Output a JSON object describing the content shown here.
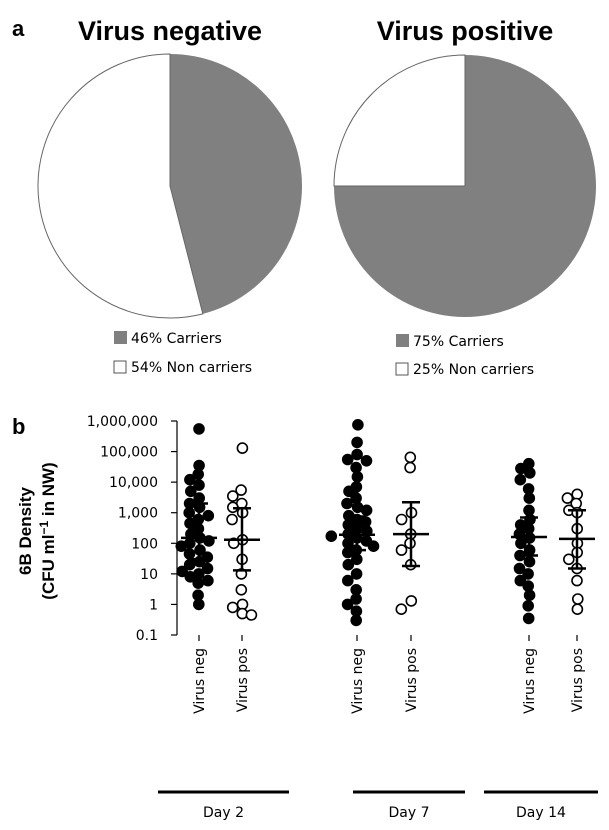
{
  "panel_a": {
    "letter": "a"
  },
  "panel_b": {
    "letter": "b"
  },
  "chart_data": [
    {
      "type": "pie",
      "title": "Virus negative",
      "slices": [
        {
          "label": "46% Carriers",
          "value": 46,
          "color": "#808080"
        },
        {
          "label": "54% Non carriers",
          "value": 54,
          "color": "#ffffff"
        }
      ]
    },
    {
      "type": "pie",
      "title": "Virus positive",
      "slices": [
        {
          "label": "75% Carriers",
          "value": 75,
          "color": "#808080"
        },
        {
          "label": "25% Non carriers",
          "value": 25,
          "color": "#ffffff"
        }
      ]
    },
    {
      "type": "scatter",
      "ylabel_line1": "6B Density",
      "ylabel_line2_prefix": "(CFU ml",
      "ylabel_line2_sup": "−1",
      "ylabel_line2_suffix": " in NW)",
      "yscale": "log",
      "ylim": [
        0.1,
        1000000
      ],
      "yticks": [
        {
          "value": 0.1,
          "label": "0.1"
        },
        {
          "value": 1,
          "label": "1"
        },
        {
          "value": 10,
          "label": "10"
        },
        {
          "value": 100,
          "label": "100"
        },
        {
          "value": 1000,
          "label": "1,000"
        },
        {
          "value": 10000,
          "label": "10,000"
        },
        {
          "value": 100000,
          "label": "100,000"
        },
        {
          "value": 1000000,
          "label": "1,000,000"
        }
      ],
      "groups": [
        {
          "label": "Day 2",
          "categories": [
            "Virus neg",
            "Virus pos"
          ]
        },
        {
          "label": "Day 7",
          "categories": [
            "Virus neg",
            "Virus pos"
          ]
        },
        {
          "label": "Day 14",
          "categories": [
            "Virus neg",
            "Virus pos"
          ]
        }
      ],
      "series": [
        {
          "group": "Day 2",
          "category": "Virus neg",
          "filled": true,
          "median": 150,
          "iqr": [
            30,
            2000
          ],
          "values": [
            550000,
            35000,
            18000,
            12000,
            8000,
            5000,
            3000,
            2000,
            1500,
            1000,
            800,
            600,
            450,
            300,
            200,
            150,
            120,
            100,
            80,
            60,
            45,
            35,
            25,
            20,
            15,
            12,
            10,
            8,
            6,
            5,
            2,
            1
          ]
        },
        {
          "group": "Day 2",
          "category": "Virus pos",
          "filled": false,
          "median": 130,
          "iqr": [
            13,
            1400
          ],
          "values": [
            130000,
            5500,
            3500,
            2000,
            1500,
            1000,
            600,
            130,
            100,
            30,
            10,
            3,
            1,
            0.8,
            0.5,
            0.45
          ]
        },
        {
          "group": "Day 7",
          "category": "Virus neg",
          "filled": true,
          "median": 190,
          "iqr": [
            60,
            750
          ],
          "values": [
            750000,
            200000,
            80000,
            55000,
            50000,
            30000,
            15000,
            7000,
            5000,
            3000,
            2000,
            1500,
            1200,
            800,
            600,
            500,
            400,
            300,
            250,
            200,
            170,
            150,
            120,
            100,
            80,
            60,
            50,
            30,
            20,
            10,
            6,
            3,
            1.5,
            1,
            0.6,
            0.3
          ]
        },
        {
          "group": "Day 7",
          "category": "Virus pos",
          "filled": false,
          "median": 200,
          "iqr": [
            18,
            2200
          ],
          "values": [
            65000,
            30000,
            1000,
            600,
            200,
            100,
            60,
            20,
            1.3,
            0.7
          ]
        },
        {
          "group": "Day 14",
          "category": "Virus neg",
          "filled": true,
          "median": 160,
          "iqr": [
            40,
            700
          ],
          "values": [
            40000,
            28000,
            20000,
            12000,
            6000,
            3000,
            1200,
            600,
            400,
            300,
            200,
            150,
            100,
            60,
            40,
            25,
            15,
            10,
            6,
            4,
            2,
            0.9,
            0.35
          ]
        },
        {
          "group": "Day 14",
          "category": "Virus pos",
          "filled": false,
          "median": 140,
          "iqr": [
            15,
            1200
          ],
          "values": [
            4000,
            3000,
            2000,
            1200,
            1000,
            300,
            100,
            50,
            30,
            15,
            6,
            1.5,
            0.7
          ]
        }
      ]
    }
  ]
}
